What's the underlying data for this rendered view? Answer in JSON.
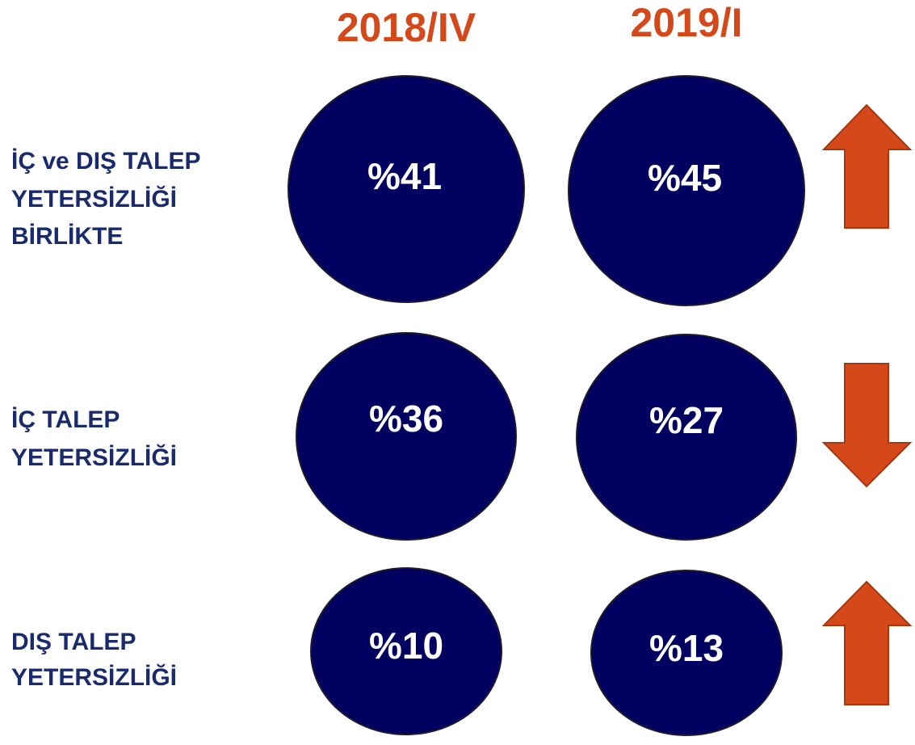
{
  "columns": [
    "2018/IV",
    "2019/I"
  ],
  "rows": [
    {
      "label": [
        "İÇ ve DIŞ TALEP",
        "YETERSİZLİĞİ",
        "BİRLİKTE"
      ],
      "values": [
        "%41",
        "%45"
      ]
    },
    {
      "label": [
        "İÇ TALEP",
        "YETERSİZLİĞİ"
      ],
      "values": [
        "%36",
        "%27"
      ]
    },
    {
      "label": [
        "DIŞ TALEP",
        "YETERSİZLİĞİ"
      ],
      "values": [
        "%10",
        "%13"
      ]
    }
  ]
}
